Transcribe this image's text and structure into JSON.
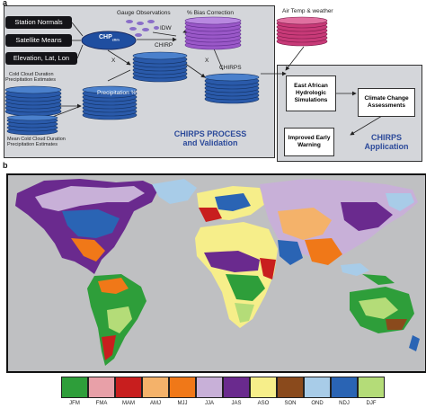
{
  "panel_a_label": "a",
  "panel_b_label": "b",
  "inputs": {
    "station": "Station Normals",
    "satellite": "Satellite Means",
    "elevation": "Elevation, Lat, Lon"
  },
  "labels": {
    "gauge": "Gauge Observations",
    "bias": "% Bias Correction",
    "air": "Air Temp & weather",
    "chp": "CHP",
    "chp_sub": "clim",
    "idw": "IDW",
    "chirp": "CHIRP",
    "x1": "X",
    "x2": "X",
    "chirps": "CHIRPS",
    "precip_pct": "Precipitation %",
    "ccd_top_1": "Cold Cloud Duration",
    "ccd_top_2": "Precipitation Estimates",
    "ccd_bot_1": "Mean Cold Cloud Duration",
    "ccd_bot_2": "Precipitation Estimates"
  },
  "process_title_1": "CHIRPS PROCESS",
  "process_title_2": "and Validation",
  "application": {
    "east_african": "East African Hydrologic Simulations",
    "climate": "Climate Change Assessments",
    "warning": "Improved Early Warning",
    "title_1": "CHIRPS",
    "title_2": "Application"
  },
  "legend": [
    {
      "label": "JFM",
      "color": "#2e9e3a"
    },
    {
      "label": "FMA",
      "color": "#e8a0a8"
    },
    {
      "label": "MAM",
      "color": "#c81e1e"
    },
    {
      "label": "AMJ",
      "color": "#f4b26a"
    },
    {
      "label": "MJJ",
      "color": "#f07818"
    },
    {
      "label": "JJA",
      "color": "#c8b0d8"
    },
    {
      "label": "JAS",
      "color": "#6a2a8e"
    },
    {
      "label": "ASO",
      "color": "#f6ee8a"
    },
    {
      "label": "SON",
      "color": "#8a4a1c"
    },
    {
      "label": "OND",
      "color": "#a8cce8"
    },
    {
      "label": "NDJ",
      "color": "#2a64b4"
    },
    {
      "label": "DJF",
      "color": "#b4dc78"
    }
  ]
}
